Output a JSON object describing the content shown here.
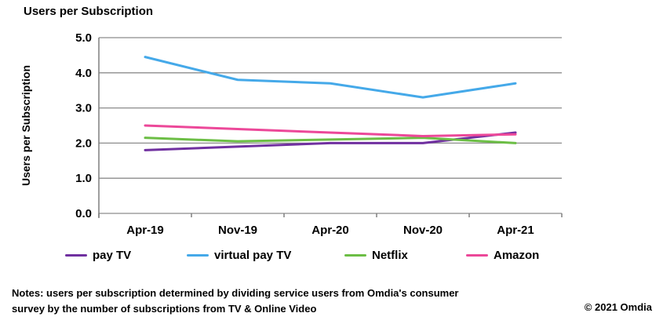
{
  "title": "Users per Subscription",
  "y_axis_label": "Users per Subscription",
  "chart_data": {
    "type": "line",
    "title": "Users per Subscription",
    "ylabel": "Users per Subscription",
    "xlabel": "",
    "categories": [
      "Apr-19",
      "Nov-19",
      "Apr-20",
      "Nov-20",
      "Apr-21"
    ],
    "series": [
      {
        "name": "pay TV",
        "color": "#7030A0",
        "values": [
          1.8,
          1.9,
          2.0,
          2.0,
          2.3
        ]
      },
      {
        "name": "virtual pay TV",
        "color": "#45A9E9",
        "values": [
          4.45,
          3.8,
          3.7,
          3.3,
          3.7
        ]
      },
      {
        "name": "Netflix",
        "color": "#6CBE45",
        "values": [
          2.15,
          2.05,
          2.1,
          2.15,
          2.0
        ]
      },
      {
        "name": "Amazon",
        "color": "#EC4899",
        "values": [
          2.5,
          2.4,
          2.3,
          2.2,
          2.25
        ]
      }
    ],
    "ylim": [
      0,
      5
    ],
    "ytick_step": 1,
    "ytick_labels": [
      "0.0",
      "1.0",
      "2.0",
      "3.0",
      "4.0",
      "5.0"
    ],
    "grid": "horizontal",
    "legend_position": "bottom"
  },
  "notes": {
    "line1": "Notes: users per subscription determined by dividing service users from Omdia's consumer",
    "line2": "survey by the number of subscriptions from TV & Online Video"
  },
  "copyright": "© 2021 Omdia",
  "colors": {
    "grid": "#8C8C8C",
    "axis": "#7F7F7F",
    "text": "#000000",
    "background": "#FFFFFF"
  }
}
